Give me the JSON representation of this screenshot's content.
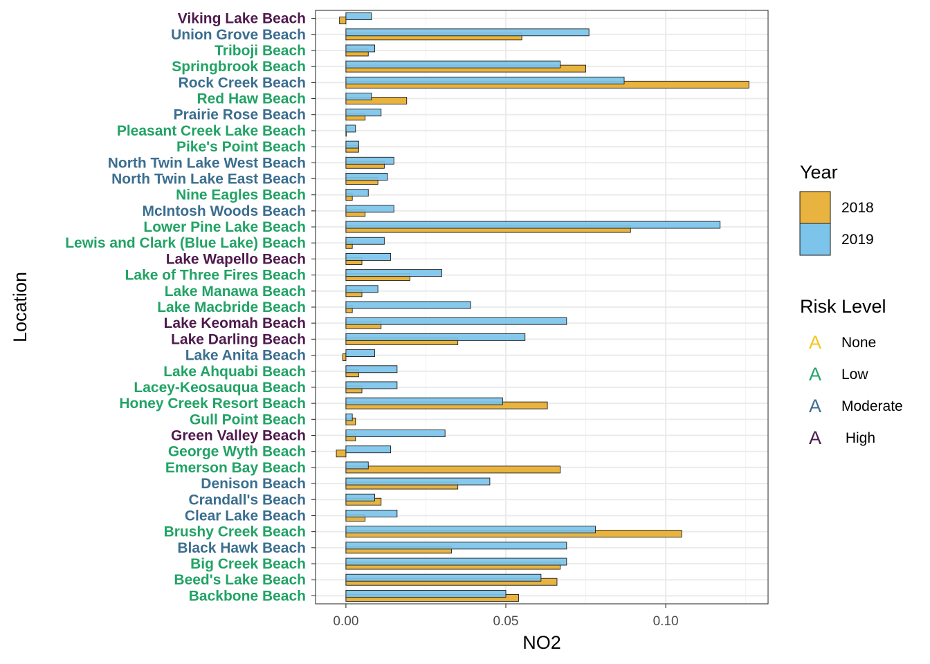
{
  "chart_data": {
    "type": "bar",
    "orientation": "horizontal",
    "xlabel": "NO2",
    "ylabel": "Location",
    "xlim": [
      -0.0095,
      0.132
    ],
    "x_ticks": [
      0.0,
      0.05,
      0.1
    ],
    "x_tick_labels": [
      "0.00",
      "0.05",
      "0.10"
    ],
    "grid": true,
    "categories": [
      "Backbone Beach",
      "Beed's Lake Beach",
      "Big Creek Beach",
      "Black Hawk Beach",
      "Brushy Creek Beach",
      "Clear Lake Beach",
      "Crandall's Beach",
      "Denison Beach",
      "Emerson Bay Beach",
      "George Wyth Beach",
      "Green Valley Beach",
      "Gull Point Beach",
      "Honey Creek Resort Beach",
      "Lacey-Keosauqua Beach",
      "Lake Ahquabi Beach",
      "Lake Anita Beach",
      "Lake Darling Beach",
      "Lake Keomah Beach",
      "Lake Macbride Beach",
      "Lake Manawa Beach",
      "Lake of Three Fires Beach",
      "Lake Wapello Beach",
      "Lewis and Clark (Blue Lake) Beach",
      "Lower Pine Lake Beach",
      "McIntosh Woods Beach",
      "Nine Eagles Beach",
      "North Twin Lake East Beach",
      "North Twin Lake West Beach",
      "Pike's Point Beach",
      "Pleasant Creek Lake Beach",
      "Prairie Rose Beach",
      "Red Haw Beach",
      "Rock Creek Beach",
      "Springbrook Beach",
      "Triboji Beach",
      "Union Grove Beach",
      "Viking Lake Beach"
    ],
    "category_risk": [
      "Low",
      "Low",
      "Low",
      "Moderate",
      "Low",
      "Moderate",
      "Moderate",
      "Moderate",
      "Low",
      "Low",
      "High",
      "Low",
      "Low",
      "Low",
      "Low",
      "Moderate",
      "High",
      "High",
      "Low",
      "Low",
      "Low",
      "High",
      "Low",
      "Low",
      "Moderate",
      "Low",
      "Moderate",
      "Moderate",
      "Low",
      "Low",
      "Moderate",
      "Low",
      "Moderate",
      "Low",
      "Low",
      "Moderate",
      "High"
    ],
    "series": [
      {
        "name": "2018",
        "color": "#E8B33F",
        "values": [
          0.054,
          0.066,
          0.067,
          0.033,
          0.105,
          0.006,
          0.011,
          0.035,
          0.067,
          -0.003,
          0.003,
          0.003,
          0.063,
          0.005,
          0.004,
          -0.001,
          0.035,
          0.011,
          0.002,
          0.005,
          0.02,
          0.005,
          0.002,
          0.089,
          0.006,
          0.002,
          0.01,
          0.012,
          0.004,
          0.0,
          0.006,
          0.019,
          0.126,
          0.075,
          0.007,
          0.055,
          -0.002
        ]
      },
      {
        "name": "2019",
        "color": "#7CC4EA",
        "values": [
          0.05,
          0.061,
          0.069,
          0.069,
          0.078,
          0.016,
          0.009,
          0.045,
          0.007,
          0.014,
          0.031,
          0.002,
          0.049,
          0.016,
          0.016,
          0.009,
          0.056,
          0.069,
          0.039,
          0.01,
          0.03,
          0.014,
          0.012,
          0.117,
          0.015,
          0.007,
          0.013,
          0.015,
          0.004,
          0.003,
          0.011,
          0.008,
          0.087,
          0.067,
          0.009,
          0.076,
          0.008
        ]
      }
    ],
    "legend": {
      "position": "right",
      "year_title": "Year",
      "risk_title": "Risk Level",
      "risk_levels": [
        {
          "key": "None",
          "glyph": "A",
          "label": "None",
          "color": "#F5C518"
        },
        {
          "key": "Low",
          "glyph": "A",
          "label": "Low",
          "color": "#21A365"
        },
        {
          "key": "Moderate",
          "glyph": "A",
          "label": "Moderate",
          "color": "#3B6E8F"
        },
        {
          "key": "High",
          "glyph": "A",
          "label": " High",
          "color": "#4E1A4C"
        }
      ]
    }
  }
}
